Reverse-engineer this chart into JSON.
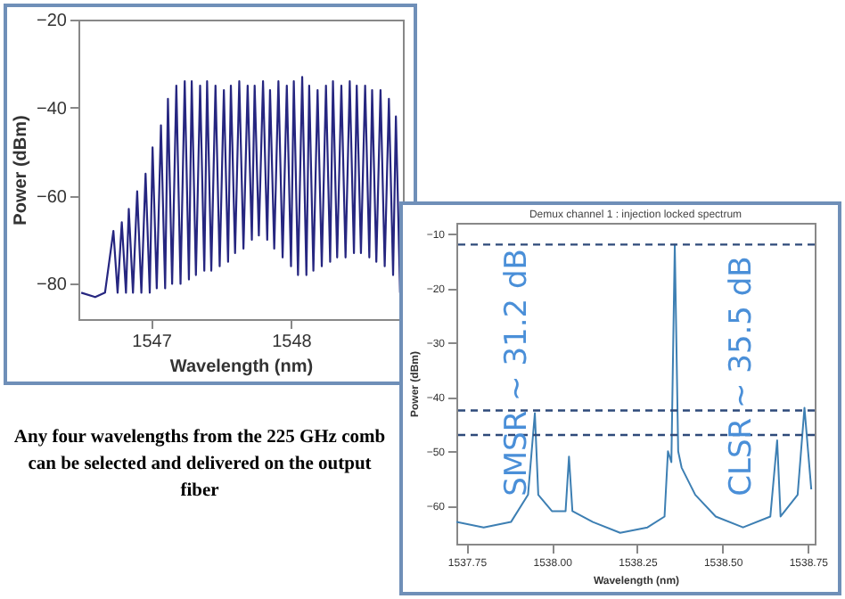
{
  "chart_data": [
    {
      "type": "line",
      "xlabel": "Wavelength (nm)",
      "ylabel": "Power (dBm)",
      "xlim": [
        1546.48,
        1548.8
      ],
      "ylim": [
        -88,
        -20
      ],
      "xticks": [
        1547,
        1548
      ],
      "yticks": [
        -20,
        -40,
        -60,
        -80
      ],
      "annotations": [
        "Any four wavelengths from the 225 GHz comb can be selected and delivered on the output fiber"
      ],
      "series": [
        {
          "color": "#262680",
          "x": [
            1546.5,
            1546.6,
            1546.67,
            1546.73,
            1546.76,
            1546.79,
            1546.82,
            1546.84,
            1546.87,
            1546.9,
            1546.93,
            1546.96,
            1546.99,
            1547.01,
            1547.04,
            1547.07,
            1547.1,
            1547.12,
            1547.15,
            1547.18,
            1547.21,
            1547.24,
            1547.27,
            1547.29,
            1547.32,
            1547.35,
            1547.38,
            1547.4,
            1547.43,
            1547.46,
            1547.49,
            1547.52,
            1547.55,
            1547.57,
            1547.6,
            1547.63,
            1547.66,
            1547.69,
            1547.72,
            1547.74,
            1547.77,
            1547.8,
            1547.83,
            1547.85,
            1547.88,
            1547.91,
            1547.94,
            1547.97,
            1548.0,
            1548.02,
            1548.05,
            1548.08,
            1548.11,
            1548.13,
            1548.16,
            1548.19,
            1548.22,
            1548.25,
            1548.28,
            1548.3,
            1548.33,
            1548.36,
            1548.39,
            1548.42,
            1548.45,
            1548.47,
            1548.5,
            1548.53,
            1548.56,
            1548.58,
            1548.61,
            1548.64,
            1548.67,
            1548.7,
            1548.73,
            1548.75,
            1548.78
          ],
          "values": [
            -82,
            -83,
            -82,
            -68,
            -82,
            -66,
            -82,
            -63,
            -82,
            -59,
            -82,
            -55,
            -82,
            -49,
            -81,
            -44,
            -81,
            -38,
            -80,
            -35,
            -80,
            -34,
            -79,
            -34,
            -78,
            -35,
            -77,
            -34,
            -77,
            -35,
            -76,
            -36,
            -75,
            -35,
            -73,
            -34,
            -72,
            -35,
            -70,
            -35,
            -69,
            -34,
            -70,
            -36,
            -72,
            -34,
            -74,
            -35,
            -76,
            -34,
            -78,
            -33,
            -78,
            -35,
            -77,
            -36,
            -76,
            -35,
            -75,
            -34,
            -74,
            -35,
            -74,
            -34,
            -73,
            -35,
            -73,
            -35,
            -74,
            -36,
            -75,
            -36,
            -76,
            -38,
            -78,
            -42,
            -82
          ]
        }
      ]
    },
    {
      "type": "line",
      "title": "Demux channel 1 : injection locked spectrum",
      "xlabel": "Wavelength (nm)",
      "ylabel": "Power (dBm)",
      "xlim": [
        1537.72,
        1538.77
      ],
      "ylim": [
        -67,
        -8
      ],
      "xticks": [
        1537.75,
        {
          "value": 1538,
          "label": "1538.00"
        },
        1538.25,
        {
          "value": 1538.5,
          "label": "1538.50"
        },
        1538.75
      ],
      "yticks": [
        -10,
        -20,
        -30,
        -40,
        -50,
        -60
      ],
      "annotations": [
        "SMSR ~ 31.2 dB",
        "CLSR ~ 35.5 dB"
      ],
      "ref_lines": [
        {
          "axis": "y",
          "value": -12,
          "color": "#2e4a7a",
          "line_style": "dashed"
        },
        {
          "axis": "y",
          "value": -42.5,
          "color": "#2e4a7a",
          "line_style": "dashed"
        },
        {
          "axis": "y",
          "value": -47,
          "color": "#2e4a7a",
          "line_style": "dashed"
        }
      ],
      "series": [
        {
          "color": "#3d7fb3",
          "x": [
            1537.72,
            1537.8,
            1537.88,
            1537.93,
            1537.95,
            1537.96,
            1538.0,
            1538.04,
            1538.05,
            1538.06,
            1538.12,
            1538.2,
            1538.28,
            1538.33,
            1538.34,
            1538.35,
            1538.36,
            1538.37,
            1538.38,
            1538.42,
            1538.48,
            1538.56,
            1538.64,
            1538.66,
            1538.67,
            1538.72,
            1538.74,
            1538.76
          ],
          "values": [
            -63,
            -64,
            -63,
            -58,
            -43,
            -58,
            -61,
            -61,
            -51,
            -61,
            -63,
            -65,
            -64,
            -62,
            -50,
            -52,
            -12,
            -50,
            -53,
            -58,
            -62,
            -64,
            -62,
            -48,
            -62,
            -58,
            -42,
            -57
          ]
        }
      ]
    }
  ]
}
